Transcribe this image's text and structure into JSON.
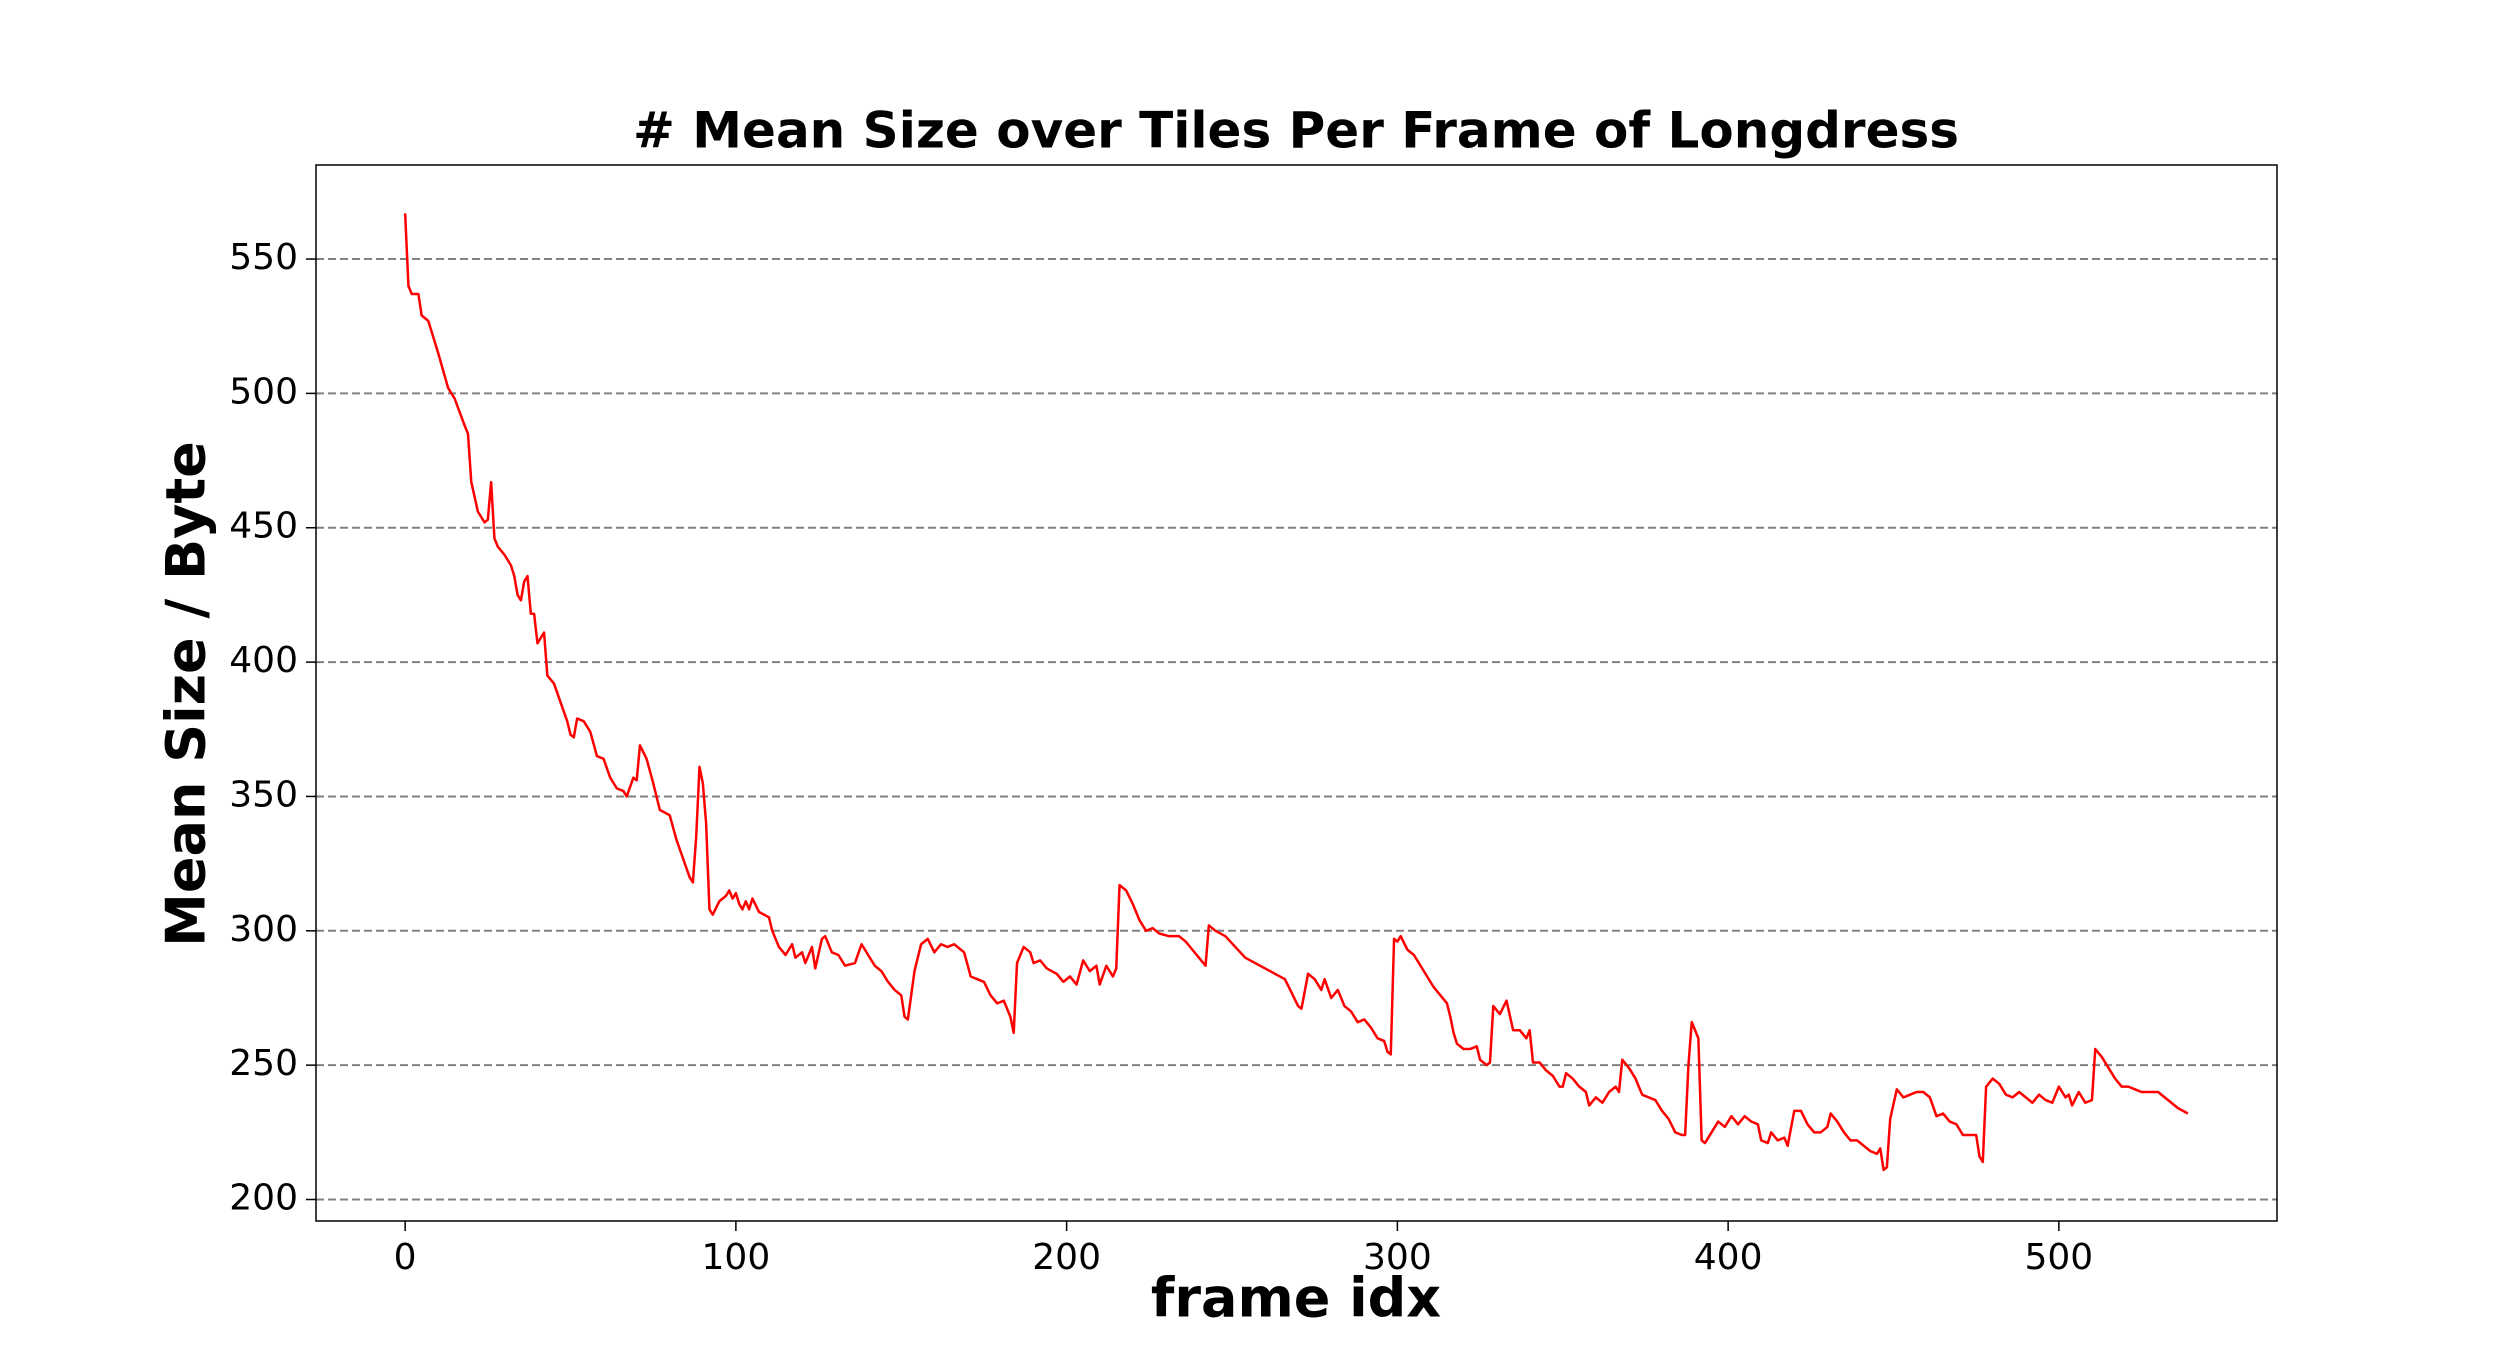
{
  "chart_data": {
    "type": "line",
    "title": "# Mean Size over Tiles Per Frame of Longdress",
    "x_label": "frame idx",
    "y_label": "Mean Size / Byte",
    "color": "#ff0000",
    "grid": true,
    "xlim": [
      -26.95,
      565.95
    ],
    "ylim": [
      192,
      585
    ],
    "xticks": [
      0,
      100,
      200,
      300,
      400,
      500
    ],
    "yticks": [
      200,
      250,
      300,
      350,
      400,
      450,
      500,
      550
    ],
    "x": [
      0,
      1,
      2,
      4,
      5,
      7,
      10,
      13,
      15,
      18,
      19,
      20,
      22,
      24,
      25,
      26,
      27,
      28,
      30,
      32,
      33,
      34,
      35,
      36,
      37,
      38,
      39,
      40,
      42,
      43,
      45,
      47,
      49,
      50,
      51,
      52,
      54,
      56,
      58,
      60,
      62,
      64,
      66,
      67,
      69,
      70,
      71,
      73,
      75,
      77,
      80,
      82,
      84,
      86,
      87,
      88,
      89,
      90,
      91,
      92,
      93,
      95,
      97,
      98,
      99,
      100,
      101,
      102,
      103,
      104,
      105,
      107,
      110,
      111,
      113,
      115,
      117,
      118,
      120,
      121,
      123,
      124,
      126,
      127,
      129,
      131,
      133,
      136,
      138,
      140,
      142,
      144,
      146,
      148,
      150,
      151,
      152,
      154,
      156,
      158,
      160,
      162,
      164,
      166,
      169,
      171,
      173,
      175,
      177,
      179,
      181,
      183,
      184,
      185,
      187,
      189,
      190,
      192,
      194,
      197,
      199,
      201,
      203,
      205,
      207,
      209,
      210,
      212,
      214,
      215,
      216,
      218,
      220,
      222,
      224,
      226,
      228,
      231,
      234,
      236,
      238,
      240,
      242,
      243,
      245,
      248,
      251,
      254,
      257,
      260,
      263,
      266,
      268,
      270,
      271,
      273,
      275,
      277,
      278,
      280,
      282,
      284,
      286,
      288,
      290,
      292,
      294,
      296,
      297,
      298,
      299,
      300,
      301,
      303,
      305,
      307,
      309,
      311,
      313,
      315,
      316,
      317,
      318,
      320,
      322,
      324,
      325,
      327,
      328,
      329,
      331,
      333,
      335,
      337,
      339,
      340,
      341,
      343,
      345,
      347,
      349,
      350,
      351,
      353,
      355,
      357,
      358,
      360,
      362,
      364,
      366,
      367,
      368,
      370,
      372,
      374,
      376,
      378,
      380,
      382,
      384,
      386,
      387,
      388,
      389,
      391,
      392,
      393,
      395,
      397,
      399,
      401,
      403,
      405,
      407,
      409,
      410,
      412,
      413,
      415,
      417,
      418,
      420,
      422,
      424,
      426,
      428,
      430,
      431,
      433,
      435,
      437,
      439,
      441,
      443,
      445,
      446,
      447,
      448,
      449,
      451,
      453,
      455,
      457,
      459,
      461,
      463,
      465,
      467,
      469,
      471,
      473,
      475,
      476,
      477,
      478,
      480,
      482,
      484,
      486,
      488,
      490,
      492,
      494,
      496,
      498,
      500,
      502,
      503,
      504,
      506,
      508,
      510,
      511,
      513,
      515,
      517,
      519,
      521,
      523,
      525,
      527,
      530,
      532,
      534,
      536,
      539
    ],
    "values": [
      567,
      540,
      537,
      537,
      529,
      527,
      515,
      502,
      498,
      488,
      485,
      467,
      456,
      452,
      453,
      467,
      446,
      443,
      440,
      436,
      432,
      425,
      423,
      430,
      432,
      418,
      418,
      407,
      411,
      395,
      392,
      385,
      378,
      373,
      372,
      379,
      378,
      374,
      365,
      364,
      357,
      353,
      352,
      350,
      357,
      356,
      369,
      364,
      355,
      345,
      343,
      334,
      327,
      320,
      318,
      335,
      361,
      355,
      340,
      308,
      306,
      311,
      313,
      315,
      312,
      314,
      310,
      308,
      311,
      308,
      312,
      307,
      305,
      300,
      294,
      291,
      295,
      290,
      292,
      288,
      294,
      286,
      297,
      298,
      292,
      291,
      287,
      288,
      295,
      291,
      287,
      285,
      281,
      278,
      276,
      268,
      267,
      285,
      295,
      297,
      292,
      295,
      294,
      295,
      292,
      283,
      282,
      281,
      276,
      273,
      274,
      268,
      262,
      288,
      294,
      292,
      288,
      289,
      286,
      284,
      281,
      283,
      280,
      289,
      285,
      287,
      280,
      287,
      283,
      286,
      317,
      315,
      310,
      304,
      300,
      301,
      299,
      298,
      298,
      296,
      293,
      290,
      287,
      302,
      300,
      298,
      294,
      290,
      288,
      286,
      284,
      282,
      277,
      272,
      271,
      284,
      282,
      278,
      282,
      275,
      278,
      272,
      270,
      266,
      267,
      264,
      260,
      259,
      255,
      254,
      297,
      296,
      298,
      293,
      291,
      287,
      283,
      279,
      276,
      273,
      268,
      262,
      258,
      256,
      256,
      257,
      252,
      250,
      251,
      272,
      269,
      274,
      263,
      263,
      260,
      263,
      251,
      251,
      248,
      246,
      242,
      242,
      247,
      245,
      242,
      240,
      235,
      238,
      236,
      240,
      242,
      240,
      252,
      249,
      245,
      239,
      238,
      237,
      233,
      230,
      225,
      224,
      224,
      250,
      266,
      260,
      222,
      221,
      225,
      229,
      227,
      231,
      228,
      231,
      229,
      228,
      222,
      221,
      225,
      222,
      223,
      220,
      233,
      233,
      228,
      225,
      225,
      227,
      232,
      229,
      225,
      222,
      222,
      220,
      218,
      217,
      219,
      211,
      212,
      230,
      241,
      238,
      239,
      240,
      240,
      238,
      231,
      232,
      229,
      228,
      224,
      224,
      224,
      216,
      214,
      242,
      245,
      243,
      239,
      238,
      240,
      238,
      236,
      239,
      237,
      236,
      242,
      238,
      239,
      235,
      240,
      236,
      237,
      256,
      253,
      249,
      245,
      242,
      242,
      241,
      240,
      240,
      240,
      238,
      236,
      234,
      232
    ]
  }
}
